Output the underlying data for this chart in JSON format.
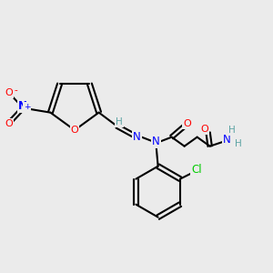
{
  "background_color": "#ebebeb",
  "fig_width": 3.0,
  "fig_height": 3.0,
  "dpi": 100,
  "atoms": {
    "colors": {
      "C": "#000000",
      "N": "#0000ff",
      "O": "#ff0000",
      "Cl": "#00cc00",
      "H": "#5ba3a3"
    }
  },
  "font_size": 7.5
}
